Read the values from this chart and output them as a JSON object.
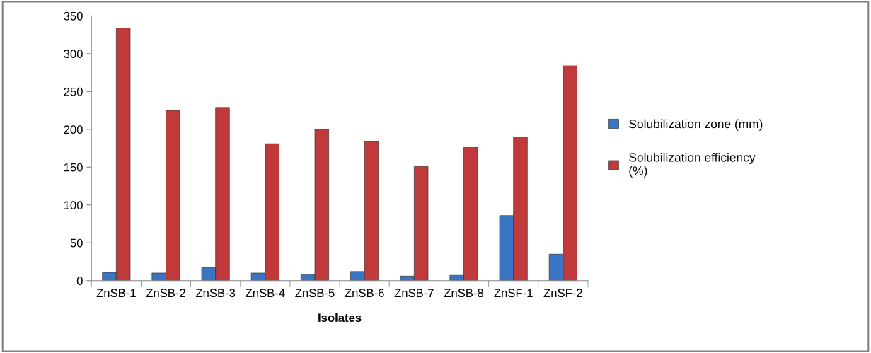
{
  "chart_data": {
    "type": "bar",
    "xlabel": "Isolates",
    "categories": [
      "ZnSB-1",
      "ZnSB-2",
      "ZnSB-3",
      "ZnSB-4",
      "ZnSB-5",
      "ZnSB-6",
      "ZnSB-7",
      "ZnSB-8",
      "ZnSF-1",
      "ZnSF-2"
    ],
    "series": [
      {
        "name": "Solubilization zone (mm)",
        "color": "#3a75c4",
        "values": [
          11,
          10,
          17,
          10,
          8,
          12,
          6,
          7,
          86,
          35
        ]
      },
      {
        "name": "Solubilization efficiency\n(%)",
        "color": "#c0393b",
        "values": [
          334,
          225,
          229,
          181,
          200,
          184,
          151,
          176,
          190,
          284
        ]
      }
    ],
    "ylim": [
      0,
      350
    ],
    "yticks": [
      0,
      50,
      100,
      150,
      200,
      250,
      300,
      350
    ],
    "grid": false,
    "legend": "right"
  }
}
